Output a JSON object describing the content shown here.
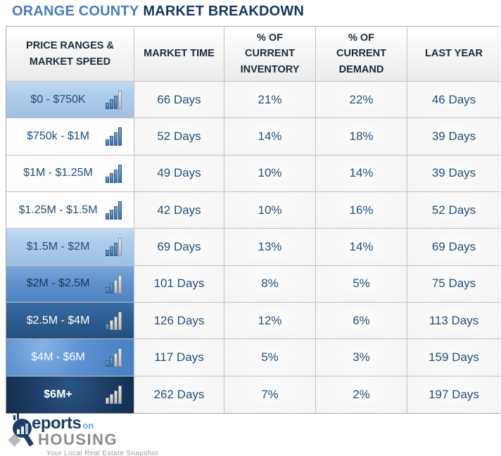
{
  "title": {
    "region": "ORANGE COUNTY",
    "subject": "MARKET BREAKDOWN"
  },
  "colors": {
    "title_region_blue": "#4a7cb8",
    "title_subject_navy": "#17375f",
    "cell_text_navy": "#1f4e79",
    "row_light_blue": "#aecded",
    "row_medium_blue": "#5d90cb",
    "row_dark_blue": "#2a5a8d",
    "row_navy": "#132c4e",
    "bar_blue": "#3f72a6",
    "bar_gray": "#b9b9b9"
  },
  "chart_data": {
    "type": "table",
    "title": "ORANGE COUNTY MARKET BREAKDOWN",
    "headers": [
      {
        "lines": [
          "PRICE RANGES &",
          "MARKET SPEED"
        ]
      },
      {
        "lines": [
          "MARKET TIME"
        ]
      },
      {
        "lines": [
          "% OF",
          "CURRENT",
          "INVENTORY"
        ]
      },
      {
        "lines": [
          "% OF",
          "CURRENT",
          "DEMAND"
        ]
      },
      {
        "lines": [
          "LAST YEAR"
        ]
      }
    ],
    "rows": [
      {
        "price_range": "$0 - $750K",
        "market_time": "66 Days",
        "current_inventory": "21%",
        "current_demand": "22%",
        "last_year": "46 Days",
        "speed_blue_bars": 3,
        "row_shade": "light-blue"
      },
      {
        "price_range": "$750k - $1M",
        "market_time": "52 Days",
        "current_inventory": "14%",
        "current_demand": "18%",
        "last_year": "39 Days",
        "speed_blue_bars": 4,
        "row_shade": "white"
      },
      {
        "price_range": "$1M - $1.25M",
        "market_time": "49 Days",
        "current_inventory": "10%",
        "current_demand": "14%",
        "last_year": "39 Days",
        "speed_blue_bars": 4,
        "row_shade": "white"
      },
      {
        "price_range": "$1.25M - $1.5M",
        "market_time": "42 Days",
        "current_inventory": "10%",
        "current_demand": "16%",
        "last_year": "52 Days",
        "speed_blue_bars": 4,
        "row_shade": "white"
      },
      {
        "price_range": "$1.5M - $2M",
        "market_time": "69 Days",
        "current_inventory": "13%",
        "current_demand": "14%",
        "last_year": "69 Days",
        "speed_blue_bars": 3,
        "row_shade": "light-blue"
      },
      {
        "price_range": "$2M - $2.5M",
        "market_time": "101 Days",
        "current_inventory": "8%",
        "current_demand": "5%",
        "last_year": "75 Days",
        "speed_blue_bars": 2,
        "row_shade": "medium-blue"
      },
      {
        "price_range": "$2.5M - $4M",
        "market_time": "126 Days",
        "current_inventory": "12%",
        "current_demand": "6%",
        "last_year": "113 Days",
        "speed_blue_bars": 1,
        "row_shade": "dark-blue"
      },
      {
        "price_range": "$4M - $6M",
        "market_time": "117 Days",
        "current_inventory": "5%",
        "current_demand": "3%",
        "last_year": "159 Days",
        "speed_blue_bars": 2,
        "row_shade": "medium-blue"
      },
      {
        "price_range": "$6M+",
        "market_time": "262 Days",
        "current_inventory": "7%",
        "current_demand": "2%",
        "last_year": "197 Days",
        "speed_blue_bars": 0,
        "row_shade": "navy"
      }
    ]
  },
  "logo": {
    "brand_reports": "eports",
    "brand_on": "on",
    "brand_housing": "HOUSING",
    "tagline": "Your Local Real Estate Snapshot"
  }
}
